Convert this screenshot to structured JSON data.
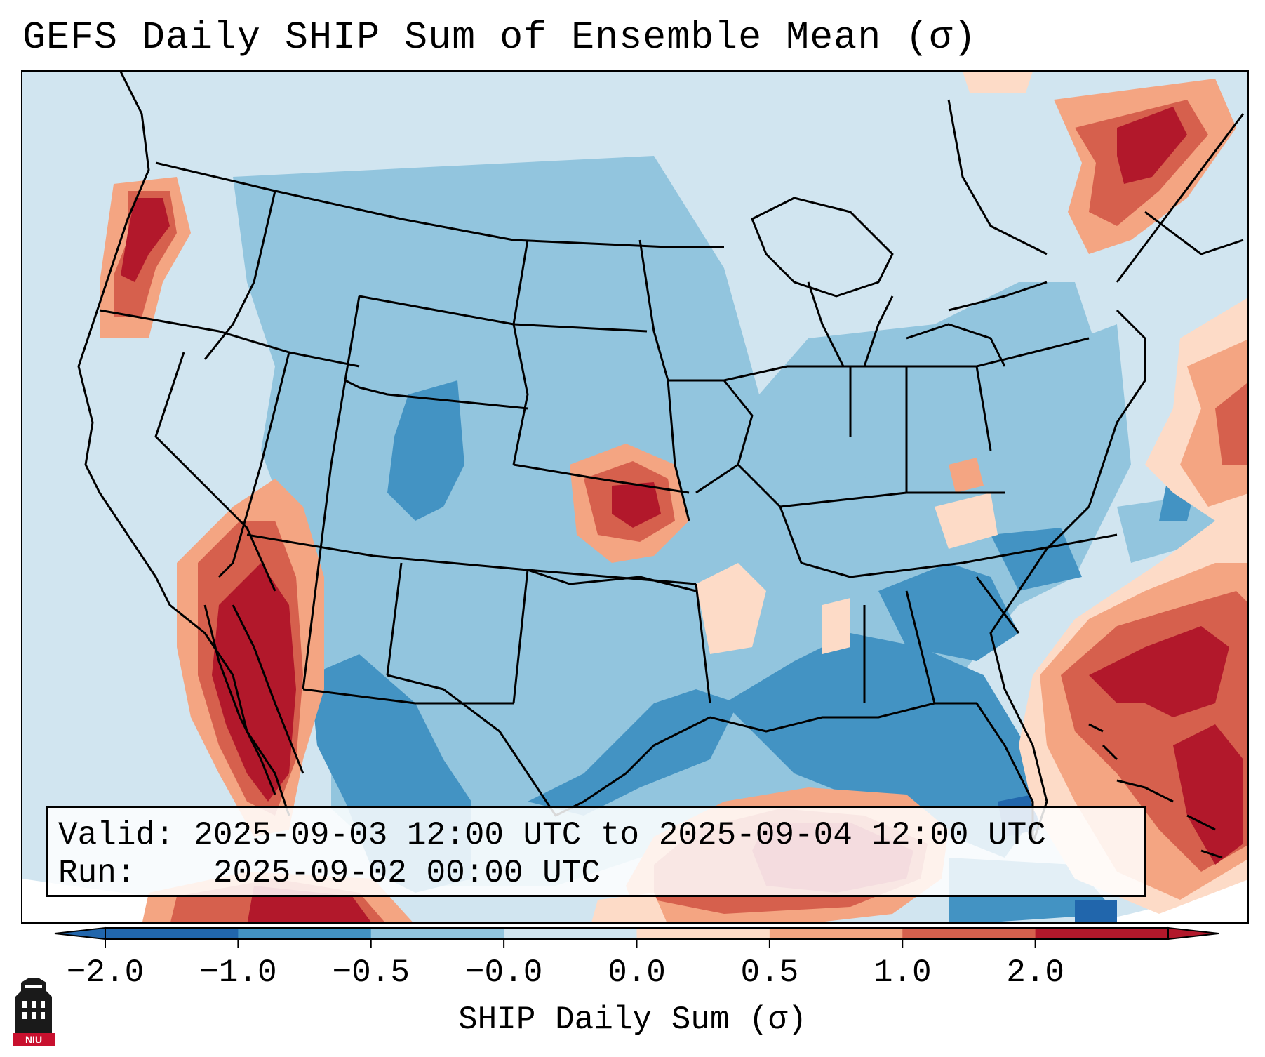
{
  "title": "GEFS Daily SHIP Sum of Ensemble Mean (σ)",
  "info": {
    "valid_label": "Valid:",
    "valid_value": "2025-09-03 12:00 UTC to 2025-09-04 12:00 UTC",
    "run_label": "Run:",
    "run_value": "2025-09-02 00:00 UTC"
  },
  "colorbar": {
    "label": "SHIP Daily Sum (σ)",
    "ticks": [
      "−2.0",
      "−1.0",
      "−0.5",
      "−0.0",
      "0.0",
      "0.5",
      "1.0",
      "2.0"
    ],
    "colors": [
      "#2166ac",
      "#4393c3",
      "#92c5de",
      "#d1e5f0",
      "#fddbc7",
      "#f4a582",
      "#d6604d",
      "#b2182b"
    ],
    "extend": "both"
  },
  "logo": {
    "text": "NIU",
    "icon": "university-tower-icon"
  },
  "map": {
    "projection": "lambert-conformal",
    "region": "CONUS",
    "colors": {
      "land_bg": "#d1e5f0",
      "pos_light": "#fddbc7",
      "pos_mid": "#f4a582",
      "pos_high": "#d6604d",
      "pos_max": "#b2182b",
      "neg_light": "#92c5de",
      "neg_mid": "#4393c3",
      "neg_max": "#2166ac"
    }
  }
}
